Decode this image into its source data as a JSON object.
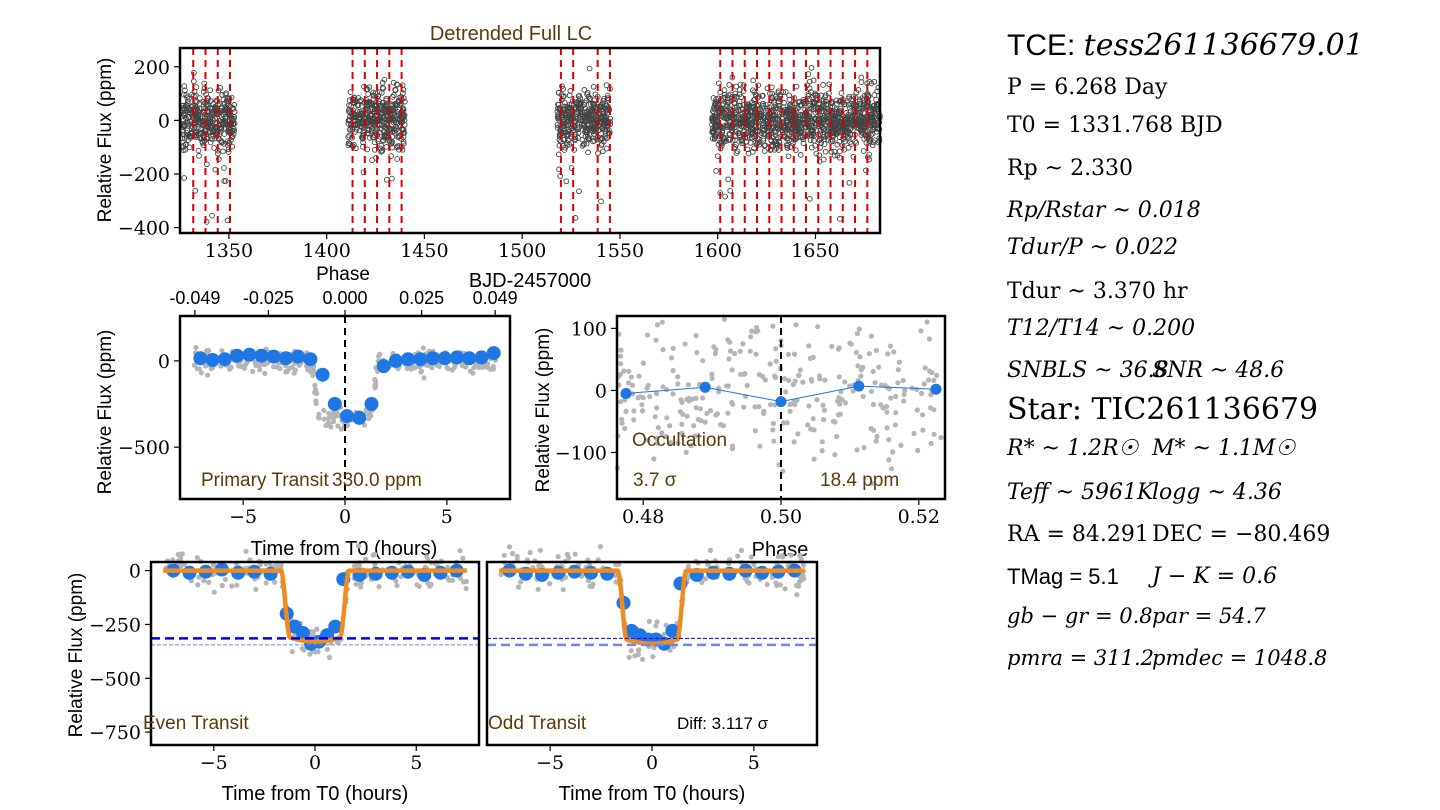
{
  "chart_data": [
    {
      "type": "scatter",
      "title": "Detrended Full LC",
      "xlabel": "BJD-2457000",
      "ylabel": "Relative Flux (ppm)",
      "xlim": [
        1325,
        1683
      ],
      "ylim": [
        -420,
        270
      ],
      "x_ticks": [
        "1350",
        "1400",
        "1450",
        "1500",
        "1550",
        "1600",
        "1650"
      ],
      "y_ticks": [
        "200",
        "0",
        "−200",
        "−400"
      ],
      "data_segments": [
        [
          1326,
          1353
        ],
        [
          1411,
          1440
        ],
        [
          1518,
          1545
        ],
        [
          1597,
          1683
        ]
      ],
      "scatter_sigma_ppm": 55,
      "transit_markers_bjd": [
        1331.768,
        1338.036,
        1344.304,
        1350.572,
        1413.252,
        1419.52,
        1425.788,
        1432.056,
        1438.324,
        1519.808,
        1526.076,
        1538.612,
        1544.88,
        1601.292,
        1607.56,
        1613.828,
        1620.096,
        1626.364,
        1632.632,
        1638.9,
        1645.168,
        1651.436,
        1657.704,
        1663.972,
        1670.24,
        1676.508
      ],
      "marker_color": "#cc0000"
    },
    {
      "type": "scatter",
      "label": "Primary Transit",
      "depth_label": "330.0 ppm",
      "xlabel": "Time from T0 (hours)",
      "ylabel": "Relative Flux (ppm)",
      "top_axis_label": "Phase",
      "top_ticks": [
        "-0.049",
        "-0.025",
        "0.000",
        "0.025",
        "0.049"
      ],
      "top_tick_hours": [
        -7.37,
        -3.76,
        0,
        3.76,
        7.37
      ],
      "xlim": [
        -8.1,
        8.1
      ],
      "ylim": [
        -800,
        260
      ],
      "x_ticks": [
        "−5",
        "0",
        "5"
      ],
      "y_ticks": [
        "0",
        "−500"
      ],
      "binned_x": [
        -7.1,
        -6.5,
        -5.9,
        -5.3,
        -4.7,
        -4.1,
        -3.5,
        -2.9,
        -2.3,
        -1.7,
        -1.1,
        -0.5,
        0.1,
        0.7,
        1.3,
        1.9,
        2.5,
        3.1,
        3.7,
        4.3,
        4.9,
        5.5,
        6.1,
        6.7,
        7.3
      ],
      "binned_y": [
        15,
        5,
        10,
        30,
        35,
        30,
        25,
        15,
        25,
        10,
        -80,
        -250,
        -320,
        -330,
        -250,
        -30,
        0,
        10,
        10,
        15,
        15,
        20,
        15,
        20,
        45
      ]
    },
    {
      "type": "scatter",
      "label": "Occultation",
      "sigma_label": "3.7 σ",
      "depth_label": "18.4 ppm",
      "xlabel": "Phase",
      "ylabel": "Relative Flux (ppm)",
      "xlim": [
        0.4762,
        0.5238
      ],
      "ylim": [
        -175,
        120
      ],
      "x_ticks": [
        "0.48",
        "0.50",
        "0.52"
      ],
      "y_ticks": [
        "100",
        "0",
        "−100"
      ],
      "binned_x": [
        0.4775,
        0.489,
        0.5,
        0.5113,
        0.5225
      ],
      "binned_y": [
        -5,
        5,
        -18,
        7,
        2
      ]
    },
    {
      "type": "scatter",
      "label": "Even Transit",
      "xlabel": "Time from T0 (hours)",
      "ylabel": "Relative Flux (ppm)",
      "xlim": [
        -8.1,
        8.1
      ],
      "ylim": [
        -810,
        40
      ],
      "x_ticks": [
        "−5",
        "0",
        "5"
      ],
      "y_ticks": [
        "0",
        "−250",
        "−500",
        "−750"
      ],
      "depth_line_ppm": -315,
      "other_depth_line_ppm": -345,
      "model_depth_ppm": 320,
      "model_half_duration_hr": 1.685,
      "binned_x": [
        -7.0,
        -6.2,
        -5.4,
        -4.6,
        -3.8,
        -3.0,
        -2.2,
        -1.4,
        -1.0,
        -0.6,
        -0.2,
        0.2,
        0.6,
        1.0,
        1.4,
        2.2,
        3.0,
        3.8,
        4.6,
        5.4,
        6.2,
        7.0
      ],
      "binned_y": [
        0,
        -10,
        -5,
        5,
        -10,
        -5,
        -15,
        -200,
        -260,
        -290,
        -340,
        -330,
        -300,
        -260,
        -40,
        -20,
        -15,
        -10,
        -5,
        -20,
        -10,
        0
      ]
    },
    {
      "type": "scatter",
      "label": "Odd Transit",
      "diff_label": "Diff: 3.117 σ",
      "xlabel": "Time from T0 (hours)",
      "xlim": [
        -8.1,
        8.1
      ],
      "ylim": [
        -810,
        40
      ],
      "x_ticks": [
        "−5",
        "0",
        "5"
      ],
      "depth_line_ppm": -345,
      "other_depth_line_ppm": -315,
      "model_depth_ppm": 330,
      "model_half_duration_hr": 1.685,
      "binned_x": [
        -7.0,
        -6.2,
        -5.4,
        -4.6,
        -3.8,
        -3.0,
        -2.2,
        -1.4,
        -1.0,
        -0.6,
        -0.2,
        0.2,
        0.6,
        1.0,
        1.4,
        2.2,
        3.0,
        3.8,
        4.6,
        5.4,
        6.2,
        7.0
      ],
      "binned_y": [
        0,
        -15,
        -20,
        -10,
        -5,
        -10,
        -15,
        -150,
        -280,
        -300,
        -320,
        -320,
        -340,
        -280,
        -60,
        -20,
        -10,
        -15,
        0,
        -10,
        -5,
        0
      ]
    }
  ],
  "colors": {
    "raw_points": "#b5b5b5",
    "binned_points": "#1f77e6",
    "model": "#f08c1e",
    "transit_marker": "#dd0000",
    "depth_line_dark": "#0000ee",
    "depth_line_light": "#6a88e8",
    "panel_label": "#5a3b0a"
  },
  "info": {
    "tce_label": "TCE: ",
    "tce_id": "tess261136679.01",
    "period": "P = 6.268 Day",
    "t0": "T0 = 1331.768 BJD",
    "rp": "Rp ~ 2.330",
    "rp_rstar": "Rp/Rstar ~ 0.018",
    "tdur_p": "Tdur/P ~ 0.022",
    "tdur": "Tdur ~ 3.370 hr",
    "t12_t14": "T12/T14 ~ 0.200",
    "sn_bls": "SNBLS ~ 36.8",
    "snr": "SNR ~ 48.6",
    "star": "Star: TIC261136679",
    "r_star": "R* ~ 1.2R☉",
    "m_star": "M* ~ 1.1M☉",
    "teff": "Teff ~ 5961K",
    "logg": "logg ~ 4.36",
    "ra": "RA = 84.291",
    "dec": "DEC = −80.469",
    "tmag": "TMag = 5.1",
    "jk": "J − K = 0.6",
    "gbgr": "gb − gr = 0.8",
    "par": "par = 54.7",
    "pmra": "pmra = 311.2",
    "pmdec": "pmdec = 1048.8"
  }
}
